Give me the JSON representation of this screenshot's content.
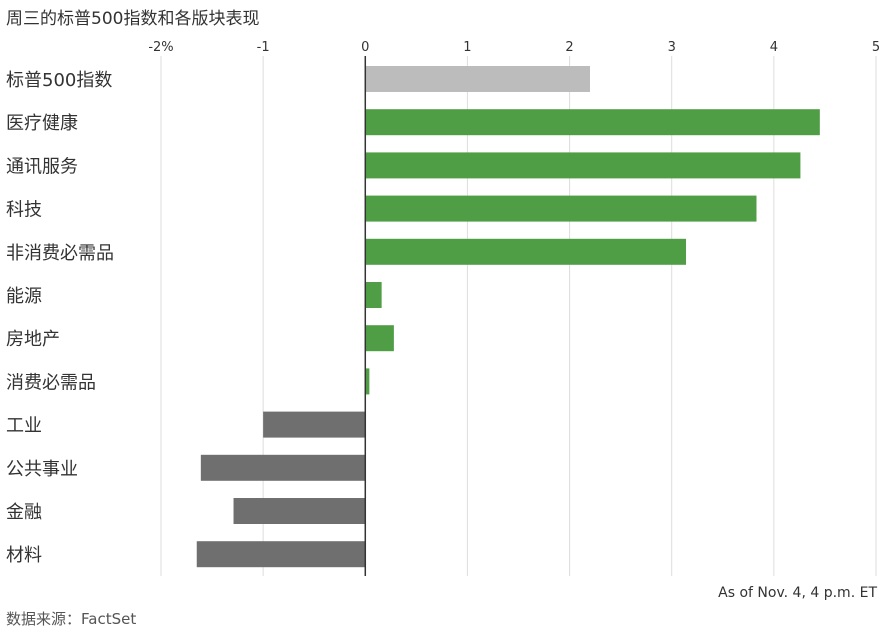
{
  "title": "周三的标普500指数和各版块表现",
  "note": "As of Nov. 4, 4 p.m. ET",
  "source": "数据来源：FactSet",
  "colors": {
    "index": "#bcbcbc",
    "positive": "#4f9e46",
    "negative": "#6f6f6f",
    "grid": "#dddddd",
    "axis": "#333333"
  },
  "chart_data": {
    "type": "bar",
    "orientation": "horizontal",
    "title": "周三的标普500指数和各版块表现",
    "x_tick_labels": [
      "-2%",
      "-1",
      "0",
      "1",
      "2",
      "3",
      "4",
      "5"
    ],
    "x_ticks": [
      -2,
      -1,
      0,
      1,
      2,
      3,
      4,
      5
    ],
    "xlim": [
      -2,
      5
    ],
    "grid": true,
    "categories": [
      "标普500指数",
      "医疗健康",
      "通讯服务",
      "科技",
      "非消费必需品",
      "能源",
      "房地产",
      "消费必需品",
      "工业",
      "公共事业",
      "金融",
      "材料"
    ],
    "values": [
      2.2,
      4.45,
      4.26,
      3.83,
      3.14,
      0.16,
      0.28,
      0.04,
      -1.0,
      -1.61,
      -1.29,
      -1.65
    ]
  }
}
